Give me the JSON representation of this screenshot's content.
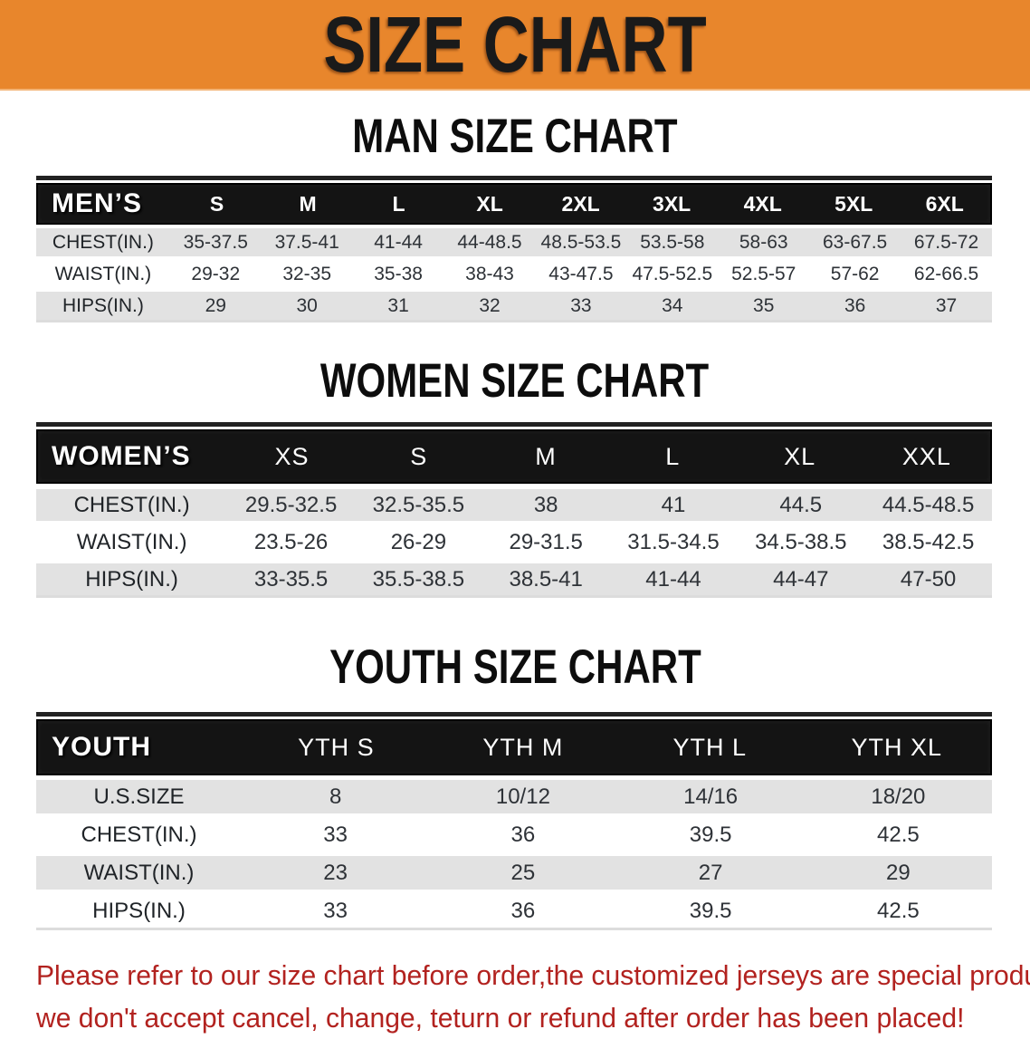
{
  "banner": {
    "title": "SIZE CHART"
  },
  "sections": [
    {
      "title": "MAN SIZE CHART",
      "table": {
        "header_label": "MEN’S",
        "sizes": [
          "S",
          "M",
          "L",
          "XL",
          "2XL",
          "3XL",
          "4XL",
          "5XL",
          "6XL"
        ],
        "rows": [
          {
            "label": "CHEST(IN.)",
            "values": [
              "35-37.5",
              "37.5-41",
              "41-44",
              "44-48.5",
              "48.5-53.5",
              "53.5-58",
              "58-63",
              "63-67.5",
              "67.5-72"
            ]
          },
          {
            "label": "WAIST(IN.)",
            "values": [
              "29-32",
              "32-35",
              "35-38",
              "38-43",
              "43-47.5",
              "47.5-52.5",
              "52.5-57",
              "57-62",
              "62-66.5"
            ]
          },
          {
            "label": "HIPS(IN.)",
            "values": [
              "29",
              "30",
              "31",
              "32",
              "33",
              "34",
              "35",
              "36",
              "37"
            ]
          }
        ]
      }
    },
    {
      "title": "WOMEN SIZE CHART",
      "table": {
        "header_label": "WOMEN’S",
        "sizes": [
          "XS",
          "S",
          "M",
          "L",
          "XL",
          "XXL"
        ],
        "rows": [
          {
            "label": "CHEST(IN.)",
            "values": [
              "29.5-32.5",
              "32.5-35.5",
              "38",
              "41",
              "44.5",
              "44.5-48.5"
            ]
          },
          {
            "label": "WAIST(IN.)",
            "values": [
              "23.5-26",
              "26-29",
              "29-31.5",
              "31.5-34.5",
              "34.5-38.5",
              "38.5-42.5"
            ]
          },
          {
            "label": "HIPS(IN.)",
            "values": [
              "33-35.5",
              "35.5-38.5",
              "38.5-41",
              "41-44",
              "44-47",
              "47-50"
            ]
          }
        ]
      }
    },
    {
      "title": "YOUTH SIZE CHART",
      "table": {
        "header_label": "YOUTH",
        "sizes": [
          "YTH S",
          "YTH M",
          "YTH L",
          "YTH XL"
        ],
        "rows": [
          {
            "label": "U.S.SIZE",
            "values": [
              "8",
              "10/12",
              "14/16",
              "18/20"
            ]
          },
          {
            "label": "CHEST(IN.)",
            "values": [
              "33",
              "36",
              "39.5",
              "42.5"
            ]
          },
          {
            "label": "WAIST(IN.)",
            "values": [
              "23",
              "25",
              "27",
              "29"
            ]
          },
          {
            "label": "HIPS(IN.)",
            "values": [
              "33",
              "36",
              "39.5",
              "42.5"
            ]
          }
        ]
      }
    }
  ],
  "disclaimer": {
    "lines": [
      "Please refer to our size chart before order,the customized jerseys are special products,",
      "we don't accept cancel, change, teturn or refund after order has been placed!"
    ]
  },
  "colors": {
    "banner_bg": "#E8862C",
    "banner_text": "#1A1A1A",
    "header_bar": "#141414",
    "header_text": "#FFFFFF",
    "row_stripe": "#E2E2E2",
    "body_text": "#2E3237",
    "disclaimer_text": "#B2221F"
  }
}
